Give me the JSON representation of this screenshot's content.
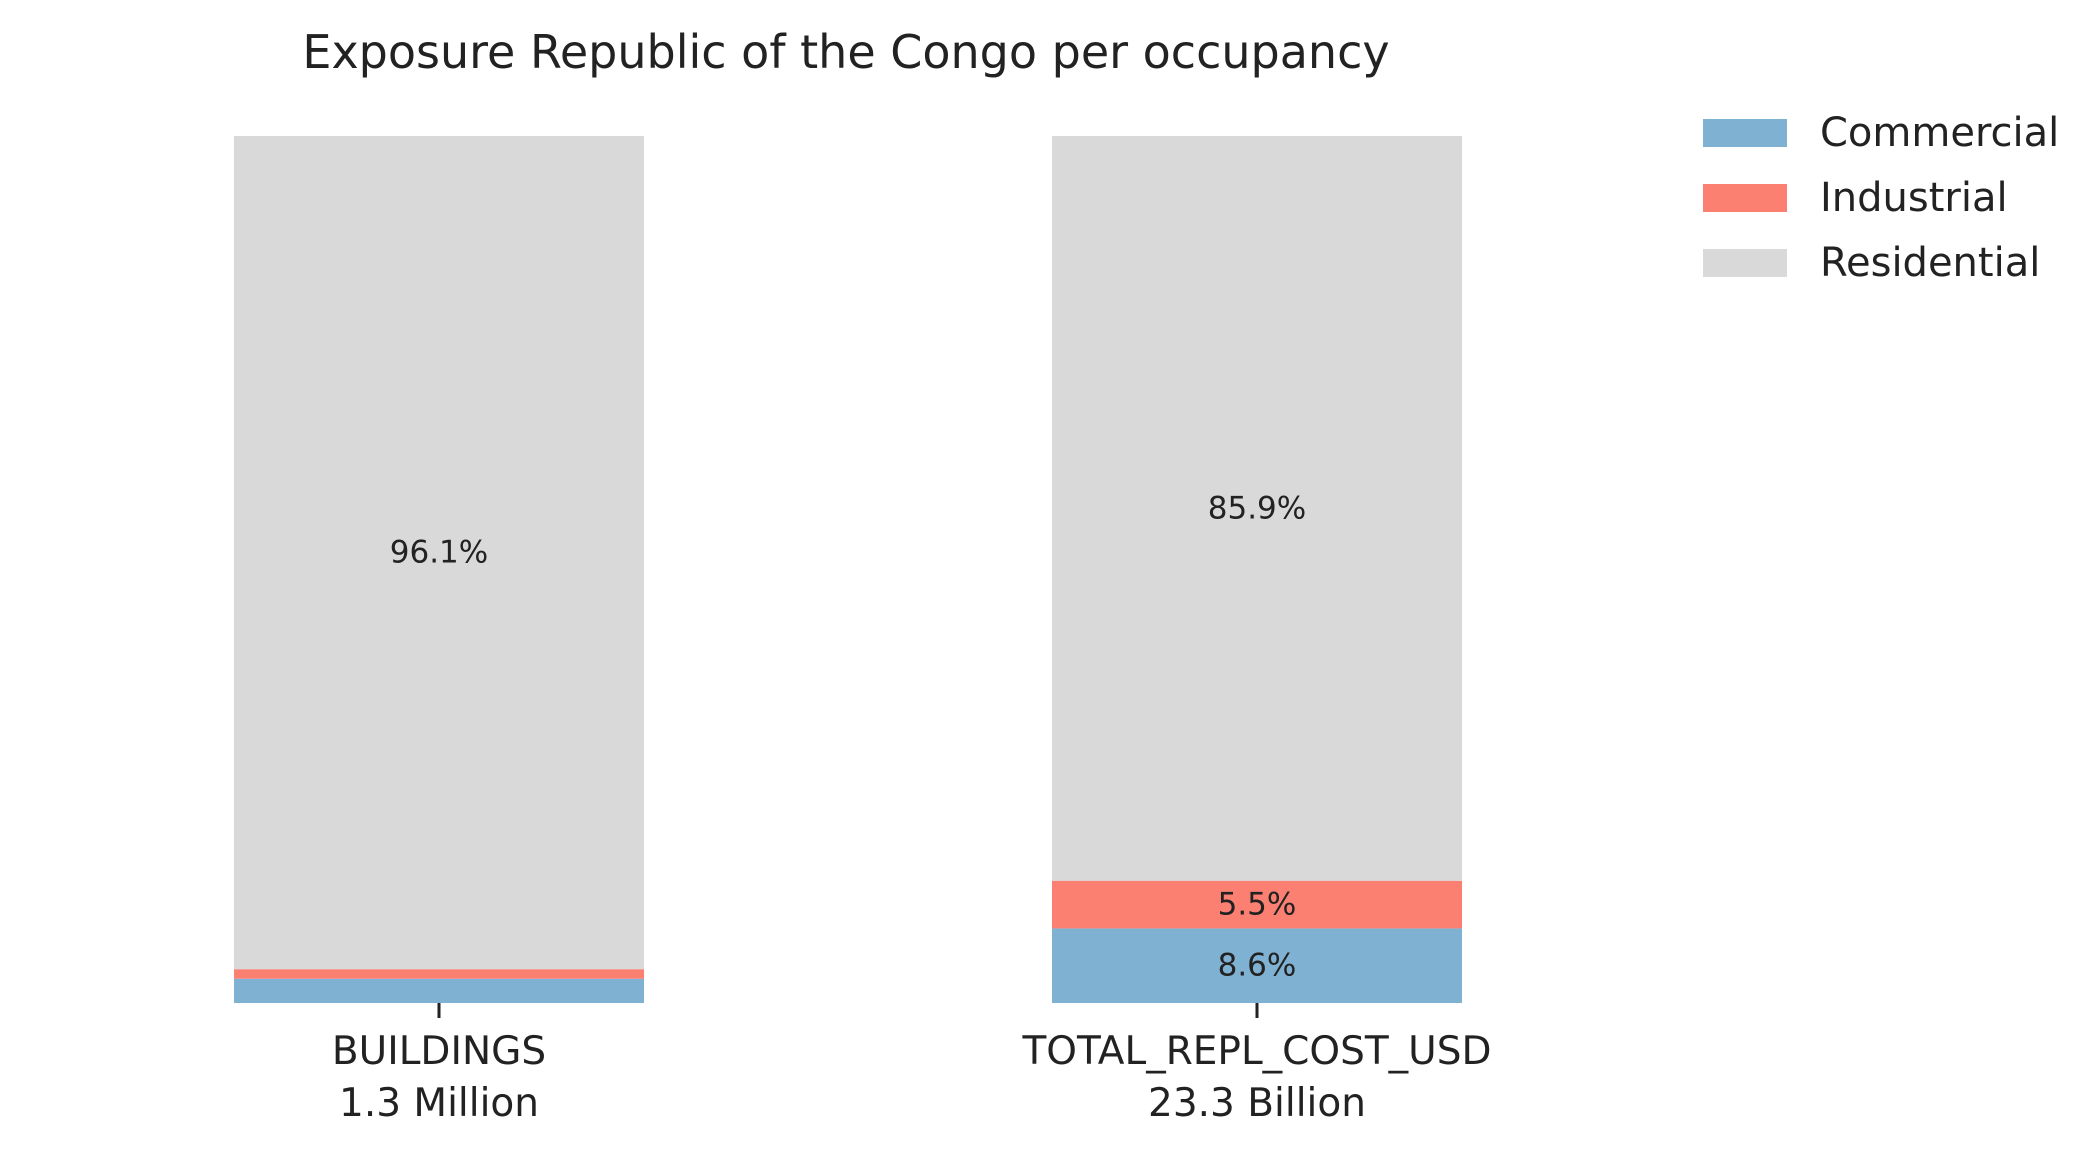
{
  "chart_data": {
    "type": "bar",
    "stacked": true,
    "normalized": true,
    "title": "Exposure Republic of the Congo per occupancy",
    "xlabel": "",
    "ylabel": "",
    "ylim": [
      0,
      100
    ],
    "grid": false,
    "legend_position": "top-right",
    "categories": [
      "BUILDINGS",
      "TOTAL_REPL_COST_USD"
    ],
    "category_totals": [
      "1.3 Million",
      "23.3 Billion"
    ],
    "series": [
      {
        "name": "Commercial",
        "color": "#7fb1d3",
        "values": [
          2.8,
          8.6
        ],
        "labels": [
          "",
          "8.6%"
        ]
      },
      {
        "name": "Industrial",
        "color": "#fb8072",
        "values": [
          1.1,
          5.5
        ],
        "labels": [
          "",
          "5.5%"
        ]
      },
      {
        "name": "Residential",
        "color": "#d9d9d9",
        "values": [
          96.1,
          85.9
        ],
        "labels": [
          "96.1%",
          "85.9%"
        ]
      }
    ]
  }
}
